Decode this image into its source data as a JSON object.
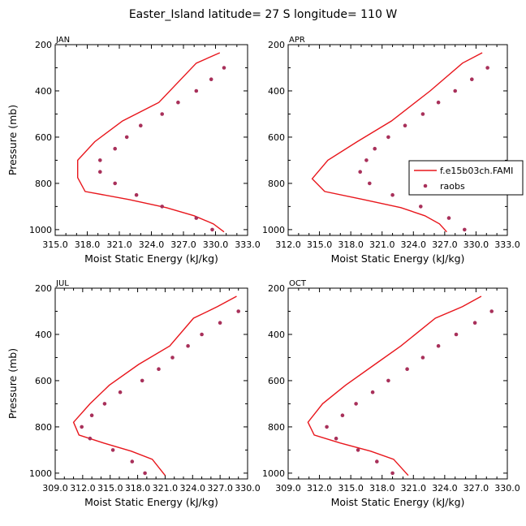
{
  "title": "Easter_Island  latitude= 27 S longitude= 110 W",
  "colors": {
    "model": "#e8161c",
    "obs": "#a8305a",
    "axis": "#000000"
  },
  "legend": {
    "model_label": "f.e15b03ch.FAMI",
    "obs_label": "raobs"
  },
  "chart_data": [
    {
      "type": "line",
      "panel": "JAN",
      "xlabel": "Moist Static Energy (kJ/kg)",
      "ylabel": "Pressure (mb)",
      "xlim": [
        315.0,
        333.0
      ],
      "ylim": [
        200,
        1025
      ],
      "xticks": [
        "315.0",
        "318.0",
        "321.0",
        "324.0",
        "327.0",
        "330.0",
        "333.0"
      ],
      "yticks": [
        "200",
        "400",
        "600",
        "800",
        "1000"
      ],
      "series": [
        {
          "kind": "line",
          "x": [
            330.4,
            328.2,
            324.7,
            321.3,
            318.7,
            317.1,
            317.1,
            317.8,
            321.9,
            325.4,
            328.0,
            329.8,
            330.8
          ],
          "y": [
            235,
            280,
            450,
            530,
            620,
            700,
            775,
            835,
            870,
            905,
            940,
            975,
            1010
          ]
        },
        {
          "kind": "scatter",
          "x": [
            330.8,
            329.6,
            328.2,
            326.5,
            325.0,
            323.0,
            321.7,
            320.6,
            319.2,
            319.2,
            320.6,
            322.6,
            325.0,
            328.2,
            329.7
          ],
          "y": [
            300,
            350,
            400,
            450,
            500,
            550,
            600,
            650,
            700,
            750,
            800,
            850,
            900,
            950,
            1000
          ]
        }
      ]
    },
    {
      "type": "line",
      "panel": "APR",
      "xlabel": "Moist Static Energy (kJ/kg)",
      "ylabel": "",
      "xlim": [
        312.0,
        333.0
      ],
      "ylim": [
        200,
        1025
      ],
      "xticks": [
        "312.0",
        "315.0",
        "318.0",
        "321.0",
        "324.0",
        "327.0",
        "330.0",
        "333.0"
      ],
      "yticks": [
        "200",
        "400",
        "600",
        "800",
        "1000"
      ],
      "series": [
        {
          "kind": "line",
          "x": [
            330.6,
            328.7,
            325.6,
            321.9,
            318.6,
            315.8,
            314.3,
            315.5,
            319.2,
            322.8,
            325.1,
            326.5,
            327.2
          ],
          "y": [
            235,
            280,
            400,
            530,
            620,
            700,
            780,
            835,
            870,
            905,
            940,
            975,
            1010
          ]
        },
        {
          "kind": "scatter",
          "x": [
            331.1,
            329.6,
            328.0,
            326.4,
            324.9,
            323.2,
            321.6,
            320.3,
            319.5,
            318.9,
            319.8,
            322.0,
            324.7,
            327.4,
            328.9
          ],
          "y": [
            300,
            350,
            400,
            450,
            500,
            550,
            600,
            650,
            700,
            750,
            800,
            850,
            900,
            950,
            1000
          ]
        }
      ]
    },
    {
      "type": "line",
      "panel": "JUL",
      "xlabel": "Moist Static Energy (kJ/kg)",
      "ylabel": "Pressure (mb)",
      "xlim": [
        309.0,
        330.0
      ],
      "ylim": [
        200,
        1025
      ],
      "xticks": [
        "309.0",
        "312.0",
        "315.0",
        "318.0",
        "321.0",
        "324.0",
        "327.0",
        "330.0"
      ],
      "yticks": [
        "200",
        "400",
        "600",
        "800",
        "1000"
      ],
      "series": [
        {
          "kind": "line",
          "x": [
            328.8,
            326.7,
            324.1,
            321.5,
            318.1,
            314.9,
            312.8,
            311.0,
            311.6,
            314.3,
            317.3,
            319.6,
            321.0
          ],
          "y": [
            235,
            280,
            330,
            450,
            530,
            620,
            700,
            780,
            835,
            870,
            905,
            940,
            1010
          ]
        },
        {
          "kind": "scatter",
          "x": [
            329.0,
            327.0,
            325.0,
            323.5,
            321.8,
            320.3,
            318.5,
            316.1,
            314.4,
            313.0,
            311.9,
            312.8,
            315.3,
            317.4,
            318.8
          ],
          "y": [
            300,
            350,
            400,
            450,
            500,
            550,
            600,
            650,
            700,
            750,
            800,
            850,
            900,
            950,
            1000
          ]
        }
      ]
    },
    {
      "type": "line",
      "panel": "OCT",
      "xlabel": "Moist Static Energy (kJ/kg)",
      "ylabel": "",
      "xlim": [
        309.0,
        330.0
      ],
      "ylim": [
        200,
        1025
      ],
      "xticks": [
        "309.0",
        "312.0",
        "315.0",
        "318.0",
        "321.0",
        "324.0",
        "327.0",
        "330.0"
      ],
      "yticks": [
        "200",
        "400",
        "600",
        "800",
        "1000"
      ],
      "series": [
        {
          "kind": "line",
          "x": [
            327.5,
            325.7,
            323.1,
            319.8,
            317.3,
            314.5,
            312.3,
            310.9,
            311.5,
            314.0,
            316.9,
            319.1,
            320.5
          ],
          "y": [
            235,
            280,
            330,
            450,
            530,
            620,
            700,
            780,
            835,
            870,
            905,
            940,
            1010
          ]
        },
        {
          "kind": "scatter",
          "x": [
            328.5,
            326.9,
            325.1,
            323.4,
            321.9,
            320.4,
            318.6,
            317.1,
            315.5,
            314.2,
            312.7,
            313.6,
            315.7,
            317.5,
            319.0
          ],
          "y": [
            300,
            350,
            400,
            450,
            500,
            550,
            600,
            650,
            700,
            750,
            800,
            850,
            900,
            950,
            1000
          ]
        }
      ]
    }
  ]
}
